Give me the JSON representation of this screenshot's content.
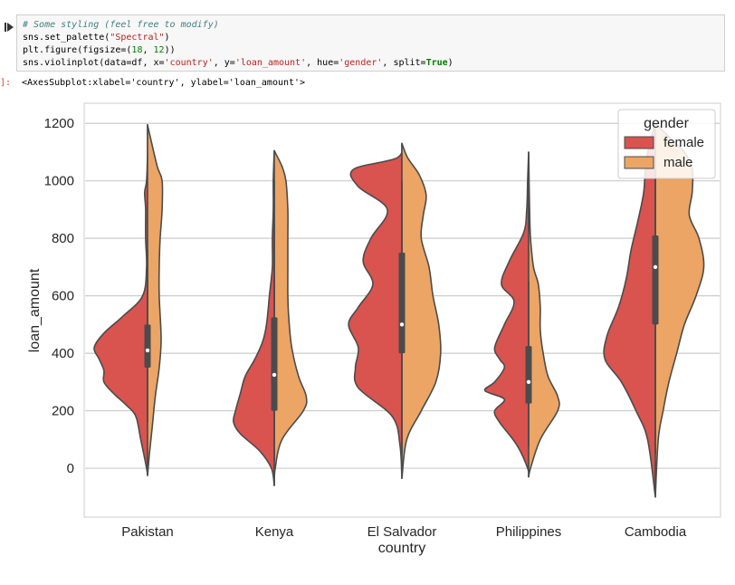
{
  "notebook": {
    "code_lines": [
      [
        {
          "t": "# Some styling (feel free to modify)",
          "c": "c-comment"
        }
      ],
      [
        {
          "t": "sns.set_palette(",
          "c": ""
        },
        {
          "t": "\"Spectral\"",
          "c": "c-str"
        },
        {
          "t": ")",
          "c": ""
        }
      ],
      [
        {
          "t": "plt.figure(figsize=(",
          "c": ""
        },
        {
          "t": "18",
          "c": "c-num"
        },
        {
          "t": ", ",
          "c": ""
        },
        {
          "t": "12",
          "c": "c-num"
        },
        {
          "t": "))",
          "c": ""
        }
      ],
      [
        {
          "t": "sns.violinplot(data=df, x=",
          "c": ""
        },
        {
          "t": "'country'",
          "c": "c-str"
        },
        {
          "t": ", y=",
          "c": ""
        },
        {
          "t": "'loan_amount'",
          "c": "c-str"
        },
        {
          "t": ", hue=",
          "c": ""
        },
        {
          "t": "'gender'",
          "c": "c-str"
        },
        {
          "t": ", split=",
          "c": ""
        },
        {
          "t": "True",
          "c": "c-kw"
        },
        {
          "t": ")",
          "c": ""
        }
      ]
    ],
    "output_prompt": "]:",
    "output_text": "<AxesSubplot:xlabel='country', ylabel='loan_amount'>"
  },
  "colors": {
    "female": "#d9534f",
    "male": "#eca565",
    "outline": "#4b4b4b",
    "grid": "#cccccc",
    "box": "#4b4b4b"
  },
  "chart_data": {
    "type": "violin",
    "title": "",
    "xlabel": "country",
    "ylabel": "loan_amount",
    "categories": [
      "Pakistan",
      "Kenya",
      "El Salvador",
      "Philippines",
      "Cambodia"
    ],
    "ylim": [
      -170,
      1270
    ],
    "yticks": [
      0,
      200,
      400,
      600,
      800,
      1000,
      1200
    ],
    "grid": true,
    "legend": {
      "title": "gender",
      "placement": "upper-right",
      "entries": [
        "female",
        "male"
      ]
    },
    "series": [
      {
        "name": "female",
        "violins": [
          {
            "profile": [
              [
                -25,
                0
              ],
              [
                0,
                0.01
              ],
              [
                100,
                0.07
              ],
              [
                180,
                0.12
              ],
              [
                220,
                0.22
              ],
              [
                260,
                0.35
              ],
              [
                300,
                0.45
              ],
              [
                340,
                0.45
              ],
              [
                380,
                0.5
              ],
              [
                420,
                0.55
              ],
              [
                470,
                0.45
              ],
              [
                530,
                0.25
              ],
              [
                600,
                0.05
              ],
              [
                700,
                0.01
              ],
              [
                800,
                0.02
              ],
              [
                900,
                0.02
              ],
              [
                960,
                0.03
              ],
              [
                1000,
                0.01
              ],
              [
                1100,
                0.0
              ],
              [
                1195,
                0
              ]
            ]
          },
          {
            "profile": [
              [
                -60,
                0
              ],
              [
                0,
                0.03
              ],
              [
                60,
                0.15
              ],
              [
                120,
                0.35
              ],
              [
                160,
                0.42
              ],
              [
                200,
                0.4
              ],
              [
                260,
                0.35
              ],
              [
                320,
                0.3
              ],
              [
                380,
                0.2
              ],
              [
                440,
                0.12
              ],
              [
                500,
                0.08
              ],
              [
                600,
                0.05
              ],
              [
                700,
                0.02
              ],
              [
                800,
                0.02
              ],
              [
                900,
                0.01
              ],
              [
                1000,
                0.01
              ],
              [
                1105,
                0
              ]
            ]
          },
          {
            "profile": [
              [
                -35,
                0
              ],
              [
                80,
                0.02
              ],
              [
                180,
                0.1
              ],
              [
                280,
                0.45
              ],
              [
                350,
                0.48
              ],
              [
                420,
                0.45
              ],
              [
                500,
                0.55
              ],
              [
                560,
                0.45
              ],
              [
                640,
                0.3
              ],
              [
                720,
                0.4
              ],
              [
                800,
                0.32
              ],
              [
                900,
                0.15
              ],
              [
                980,
                0.45
              ],
              [
                1040,
                0.5
              ],
              [
                1080,
                0.05
              ],
              [
                1130,
                0
              ]
            ]
          },
          {
            "profile": [
              [
                -30,
                0
              ],
              [
                0,
                0.01
              ],
              [
                80,
                0.12
              ],
              [
                160,
                0.3
              ],
              [
                200,
                0.35
              ],
              [
                240,
                0.25
              ],
              [
                270,
                0.45
              ],
              [
                300,
                0.35
              ],
              [
                350,
                0.25
              ],
              [
                380,
                0.3
              ],
              [
                420,
                0.35
              ],
              [
                500,
                0.25
              ],
              [
                580,
                0.15
              ],
              [
                640,
                0.28
              ],
              [
                720,
                0.2
              ],
              [
                820,
                0.05
              ],
              [
                900,
                0.02
              ],
              [
                1000,
                0.01
              ],
              [
                1100,
                0
              ]
            ]
          },
          {
            "profile": [
              [
                -100,
                0
              ],
              [
                100,
                0.08
              ],
              [
                200,
                0.2
              ],
              [
                300,
                0.35
              ],
              [
                380,
                0.52
              ],
              [
                460,
                0.5
              ],
              [
                560,
                0.38
              ],
              [
                660,
                0.3
              ],
              [
                760,
                0.25
              ],
              [
                860,
                0.18
              ],
              [
                960,
                0.12
              ],
              [
                1060,
                0.1
              ],
              [
                1140,
                0.05
              ],
              [
                1200,
                0
              ]
            ]
          }
        ]
      },
      {
        "name": "male",
        "violins": [
          {
            "profile": [
              [
                -25,
                0
              ],
              [
                50,
                0.02
              ],
              [
                150,
                0.05
              ],
              [
                250,
                0.08
              ],
              [
                350,
                0.12
              ],
              [
                450,
                0.14
              ],
              [
                600,
                0.12
              ],
              [
                700,
                0.12
              ],
              [
                800,
                0.13
              ],
              [
                900,
                0.15
              ],
              [
                1000,
                0.15
              ],
              [
                1050,
                0.1
              ],
              [
                1150,
                0.03
              ],
              [
                1195,
                0
              ]
            ]
          },
          {
            "profile": [
              [
                -60,
                0
              ],
              [
                0,
                0.01
              ],
              [
                100,
                0.08
              ],
              [
                200,
                0.3
              ],
              [
                250,
                0.33
              ],
              [
                320,
                0.25
              ],
              [
                420,
                0.18
              ],
              [
                520,
                0.15
              ],
              [
                600,
                0.14
              ],
              [
                700,
                0.14
              ],
              [
                800,
                0.14
              ],
              [
                900,
                0.14
              ],
              [
                1000,
                0.12
              ],
              [
                1050,
                0.08
              ],
              [
                1105,
                0
              ]
            ]
          },
          {
            "profile": [
              [
                -35,
                0
              ],
              [
                100,
                0.05
              ],
              [
                200,
                0.2
              ],
              [
                300,
                0.35
              ],
              [
                400,
                0.4
              ],
              [
                500,
                0.38
              ],
              [
                600,
                0.32
              ],
              [
                700,
                0.28
              ],
              [
                800,
                0.2
              ],
              [
                880,
                0.22
              ],
              [
                950,
                0.25
              ],
              [
                1020,
                0.18
              ],
              [
                1080,
                0.06
              ],
              [
                1130,
                0
              ]
            ]
          },
          {
            "profile": [
              [
                -30,
                0
              ],
              [
                0,
                0.02
              ],
              [
                100,
                0.12
              ],
              [
                200,
                0.3
              ],
              [
                250,
                0.3
              ],
              [
                320,
                0.2
              ],
              [
                400,
                0.15
              ],
              [
                480,
                0.12
              ],
              [
                560,
                0.12
              ],
              [
                640,
                0.1
              ],
              [
                700,
                0.05
              ],
              [
                800,
                0.02
              ],
              [
                900,
                0.01
              ],
              [
                1000,
                0.005
              ],
              [
                1100,
                0
              ]
            ]
          },
          {
            "profile": [
              [
                -100,
                0
              ],
              [
                100,
                0.03
              ],
              [
                200,
                0.08
              ],
              [
                300,
                0.14
              ],
              [
                400,
                0.22
              ],
              [
                500,
                0.3
              ],
              [
                600,
                0.42
              ],
              [
                700,
                0.5
              ],
              [
                800,
                0.45
              ],
              [
                880,
                0.35
              ],
              [
                960,
                0.38
              ],
              [
                1040,
                0.38
              ],
              [
                1100,
                0.3
              ],
              [
                1150,
                0.15
              ],
              [
                1200,
                0
              ]
            ]
          }
        ]
      }
    ],
    "boxes": [
      {
        "q1": 350,
        "median": 410,
        "q3": 500,
        "wlow": 160,
        "whigh": 760
      },
      {
        "q1": 200,
        "median": 325,
        "q3": 525,
        "wlow": 25,
        "whigh": 1000
      },
      {
        "q1": 400,
        "median": 500,
        "q3": 750,
        "wlow": 50,
        "whigh": 1000
      },
      {
        "q1": 225,
        "median": 300,
        "q3": 425,
        "wlow": 75,
        "whigh": 650
      },
      {
        "q1": 500,
        "median": 700,
        "q3": 810,
        "wlow": 50,
        "whigh": 1100
      }
    ]
  }
}
